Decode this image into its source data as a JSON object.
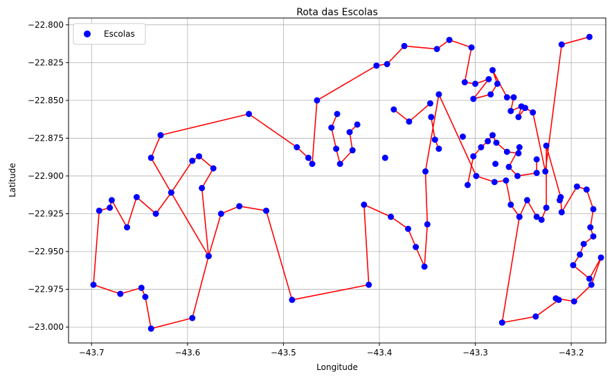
{
  "chart_data": {
    "type": "scatter",
    "title": "Rota das Escolas",
    "xlabel": "Longitude",
    "ylabel": "Latitude",
    "xlim": [
      -43.724,
      -43.164
    ],
    "ylim": [
      -23.0105,
      -22.7955
    ],
    "xticks": [
      -43.7,
      -43.6,
      -43.5,
      -43.4,
      -43.3,
      -43.2
    ],
    "xtick_labels": [
      "−43.7",
      "−43.6",
      "−43.5",
      "−43.4",
      "−43.3",
      "−43.2"
    ],
    "yticks": [
      -22.8,
      -22.825,
      -22.85,
      -22.875,
      -22.9,
      -22.925,
      -22.95,
      -22.975,
      -23.0
    ],
    "ytick_labels": [
      "−22.800",
      "−22.825",
      "−22.850",
      "−22.875",
      "−22.900",
      "−22.925",
      "−22.950",
      "−22.975",
      "−23.000"
    ],
    "grid": true,
    "legend_position": "top-left",
    "marker_color": "#0000ff",
    "route_color": "#ff0000",
    "series": [
      {
        "name": "Escolas",
        "route": [
          [
            -43.181,
            -22.808
          ],
          [
            -43.21,
            -22.813
          ],
          [
            -43.227,
            -22.897
          ],
          [
            -43.24,
            -22.858
          ],
          [
            -43.248,
            -22.855
          ],
          [
            -43.255,
            -22.861
          ],
          [
            -43.252,
            -22.854
          ],
          [
            -43.263,
            -22.857
          ],
          [
            -43.26,
            -22.848
          ],
          [
            -43.267,
            -22.848
          ],
          [
            -43.282,
            -22.83
          ],
          [
            -43.277,
            -22.839
          ],
          [
            -43.284,
            -22.846
          ],
          [
            -43.302,
            -22.849
          ],
          [
            -43.286,
            -22.836
          ],
          [
            -43.3,
            -22.839
          ],
          [
            -43.311,
            -22.838
          ],
          [
            -43.304,
            -22.815
          ],
          [
            -43.327,
            -22.81
          ],
          [
            -43.34,
            -22.816
          ],
          [
            -43.374,
            -22.814
          ],
          [
            -43.392,
            -22.826
          ],
          [
            -43.403,
            -22.827
          ],
          [
            -43.465,
            -22.85
          ],
          [
            -43.47,
            -22.892
          ],
          [
            -43.474,
            -22.888
          ],
          [
            -43.486,
            -22.881
          ],
          [
            -43.536,
            -22.859
          ],
          [
            -43.628,
            -22.873
          ],
          [
            -43.638,
            -22.888
          ],
          [
            -43.617,
            -22.911
          ],
          [
            -43.578,
            -22.953
          ],
          [
            -43.585,
            -22.908
          ],
          [
            -43.573,
            -22.895
          ],
          [
            -43.588,
            -22.887
          ],
          [
            -43.595,
            -22.89
          ],
          [
            -43.617,
            -22.911
          ],
          [
            -43.633,
            -22.925
          ],
          [
            -43.653,
            -22.914
          ],
          [
            -43.663,
            -22.934
          ],
          [
            -43.679,
            -22.916
          ],
          [
            -43.681,
            -22.921
          ],
          [
            -43.692,
            -22.923
          ],
          [
            -43.698,
            -22.972
          ],
          [
            -43.67,
            -22.978
          ],
          [
            -43.648,
            -22.974
          ],
          [
            -43.644,
            -22.98
          ],
          [
            -43.638,
            -23.001
          ],
          [
            -43.595,
            -22.994
          ],
          [
            -43.578,
            -22.953
          ],
          [
            -43.565,
            -22.925
          ],
          [
            -43.546,
            -22.92
          ],
          [
            -43.518,
            -22.923
          ],
          [
            -43.491,
            -22.982
          ],
          [
            -43.411,
            -22.972
          ],
          [
            -43.416,
            -22.919
          ],
          [
            -43.388,
            -22.927
          ],
          [
            -43.37,
            -22.935
          ],
          [
            -43.362,
            -22.947
          ],
          [
            -43.353,
            -22.96
          ],
          [
            -43.35,
            -22.932
          ],
          [
            -43.352,
            -22.897
          ],
          [
            -43.338,
            -22.846
          ],
          [
            -43.299,
            -22.9
          ],
          [
            -43.28,
            -22.904
          ],
          [
            -43.268,
            -22.903
          ],
          [
            -43.263,
            -22.919
          ],
          [
            -43.254,
            -22.927
          ],
          [
            -43.246,
            -22.916
          ],
          [
            -43.236,
            -22.927
          ],
          [
            -43.231,
            -22.929
          ],
          [
            -43.226,
            -22.921
          ],
          [
            -43.226,
            -22.88
          ],
          [
            -43.211,
            -22.914
          ],
          [
            -43.21,
            -22.924
          ],
          [
            -43.194,
            -22.907
          ],
          [
            -43.184,
            -22.909
          ],
          [
            -43.177,
            -22.922
          ],
          [
            -43.18,
            -22.934
          ],
          [
            -43.177,
            -22.94
          ],
          [
            -43.187,
            -22.945
          ],
          [
            -43.191,
            -22.952
          ],
          [
            -43.198,
            -22.959
          ],
          [
            -43.181,
            -22.968
          ],
          [
            -43.169,
            -22.954
          ],
          [
            -43.179,
            -22.972
          ],
          [
            -43.197,
            -22.983
          ],
          [
            -43.216,
            -22.981
          ],
          [
            -43.213,
            -22.982
          ],
          [
            -43.237,
            -22.993
          ],
          [
            -43.272,
            -22.997
          ],
          [
            -43.254,
            -22.927
          ]
        ],
        "extra_points": [
          [
            -43.346,
            -22.861
          ],
          [
            -43.342,
            -22.876
          ],
          [
            -43.338,
            -22.882
          ],
          [
            -43.308,
            -22.906
          ],
          [
            -43.302,
            -22.887
          ],
          [
            -43.294,
            -22.881
          ],
          [
            -43.287,
            -22.877
          ],
          [
            -43.282,
            -22.873
          ],
          [
            -43.278,
            -22.878
          ],
          [
            -43.267,
            -22.884
          ],
          [
            -43.255,
            -22.885
          ],
          [
            -43.254,
            -22.881
          ],
          [
            -43.265,
            -22.894
          ],
          [
            -43.256,
            -22.9
          ],
          [
            -43.236,
            -22.898
          ],
          [
            -43.236,
            -22.889
          ],
          [
            -43.279,
            -22.892
          ],
          [
            -43.313,
            -22.874
          ],
          [
            -43.347,
            -22.852
          ],
          [
            -43.369,
            -22.864
          ],
          [
            -43.385,
            -22.856
          ],
          [
            -43.394,
            -22.888
          ],
          [
            -43.423,
            -22.866
          ],
          [
            -43.431,
            -22.871
          ],
          [
            -43.428,
            -22.883
          ],
          [
            -43.441,
            -22.892
          ],
          [
            -43.445,
            -22.882
          ],
          [
            -43.45,
            -22.868
          ],
          [
            -43.444,
            -22.859
          ],
          [
            -43.212,
            -22.916
          ]
        ]
      }
    ]
  }
}
